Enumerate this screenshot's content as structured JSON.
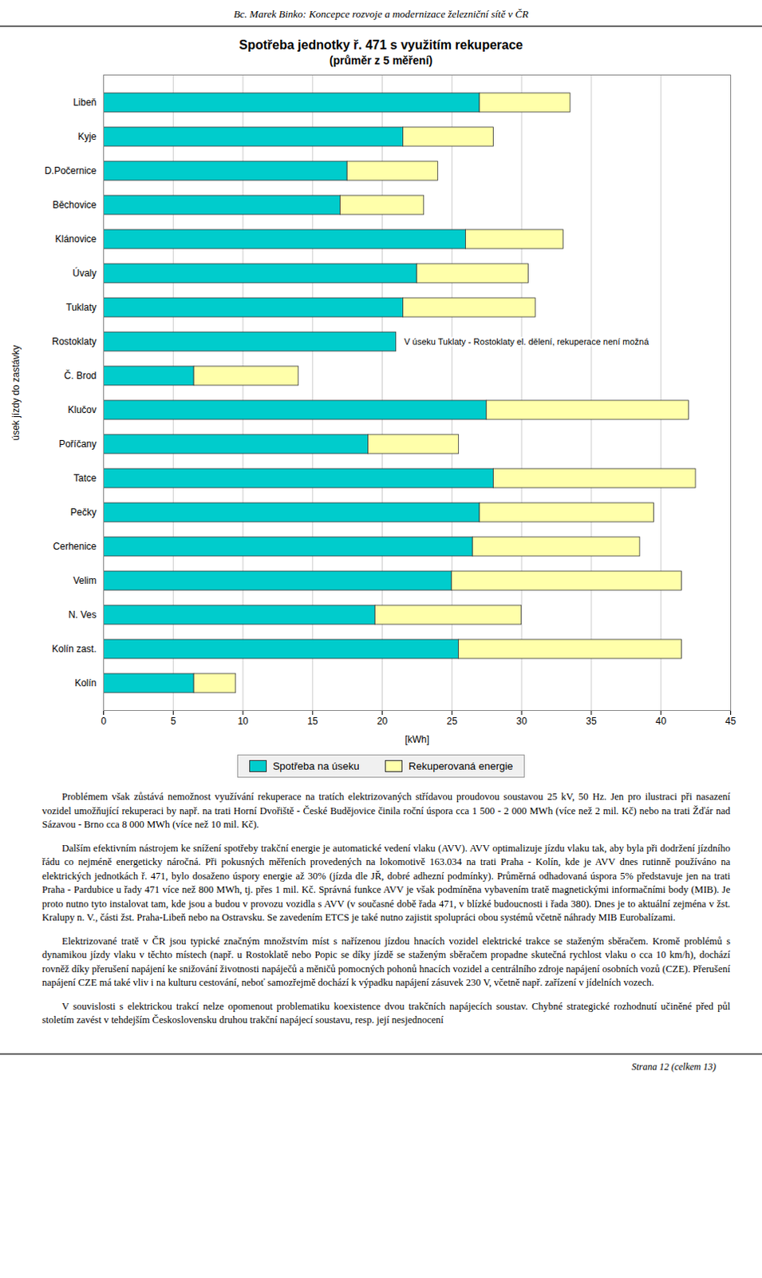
{
  "header": "Bc. Marek Binko: Koncepce rozvoje a modernizace železniční sítě v ČR",
  "chart_data": {
    "type": "bar",
    "orientation": "horizontal",
    "stacked": true,
    "title": "Spotřeba jednotky ř. 471 s využitím rekuperace",
    "subtitle": "(průměr z 5 měření)",
    "xlabel": "[kWh]",
    "ylabel": "úsek jízdy do zastávky",
    "categories": [
      "Libeň",
      "Kyje",
      "D.Počernice",
      "Běchovice",
      "Klánovice",
      "Úvaly",
      "Tuklaty",
      "Rostoklaty",
      "Č. Brod",
      "Klučov",
      "Poříčany",
      "Tatce",
      "Pečky",
      "Cerhenice",
      "Velim",
      "N. Ves",
      "Kolín zast.",
      "Kolín"
    ],
    "series": [
      {
        "name": "Spotřeba na úseku",
        "color": "#00CCCC",
        "values": [
          27.0,
          21.5,
          17.5,
          17.0,
          26.0,
          22.5,
          21.5,
          21.0,
          6.5,
          27.5,
          19.0,
          28.0,
          27.0,
          26.5,
          25.0,
          19.5,
          25.5,
          6.5
        ]
      },
      {
        "name": "Rekuperovaná energie",
        "color": "#FFFFAA",
        "values": [
          6.5,
          6.5,
          6.5,
          6.0,
          7.0,
          8.0,
          9.5,
          0.0,
          7.5,
          14.5,
          6.5,
          14.5,
          12.5,
          12.0,
          16.5,
          10.5,
          16.0,
          3.0
        ]
      }
    ],
    "xlim": [
      0,
      45
    ],
    "xticks": [
      0,
      5,
      10,
      15,
      20,
      25,
      30,
      35,
      40,
      45
    ],
    "grid": true,
    "legend": "bottom",
    "annotations": [
      {
        "text": "V úseku Tuklaty - Rostoklaty el. dělení, rekuperace není možná",
        "category": "Rostoklaty"
      }
    ]
  },
  "paragraphs": [
    "Problémem však zůstává nemožnost využívání rekuperace na tratích elektrizovaných střídavou proudovou soustavou 25 kV, 50 Hz. Jen pro ilustraci při nasazení vozidel umožňující rekuperaci by např. na trati Horní Dvořiště - České Budějovice činila roční úspora cca 1 500 - 2 000 MWh (více než 2 mil. Kč) nebo na trati Žďár nad Sázavou - Brno cca 8 000 MWh (více než 10 mil. Kč).",
    "Dalším efektivním nástrojem ke snížení spotřeby trakční energie je automatické vedení vlaku (AVV). AVV optimalizuje jízdu vlaku tak, aby byla při dodržení jízdního řádu co nejméně energeticky náročná. Při pokusných měřeních provedených na lokomotivě 163.034 na trati Praha - Kolín, kde je AVV dnes rutinně používáno na elektrických jednotkách ř. 471, bylo dosaženo úspory energie až 30% (jízda dle JŘ, dobré adhezní podmínky). Průměrná odhadovaná úspora 5% představuje jen na trati Praha - Pardubice u řady 471 více než 800 MWh, tj. přes 1 mil. Kč. Správná funkce AVV je však podmíněna vybavením tratě magnetickými informačními body (MIB). Je proto nutno tyto instalovat tam, kde jsou a budou v provozu vozidla s AVV (v současné době řada 471, v blízké budoucnosti i řada 380). Dnes je to aktuální zejména v žst. Kralupy n. V., části žst. Praha-Libeň nebo na Ostravsku. Se zavedením ETCS je také nutno zajistit spolupráci obou systémů včetně náhrady MIB Eurobalízami.",
    "Elektrizované tratě v ČR jsou typické značným množstvím míst s nařízenou jízdou hnacích vozidel elektrické trakce se staženým sběračem. Kromě problémů s dynamikou jízdy vlaku v těchto místech (např. u Rostoklatě nebo Popic se díky jízdě se staženým sběračem propadne skutečná rychlost vlaku o cca 10 km/h), dochází rovněž díky přerušení napájení ke snižování životnosti napáječů a měničů pomocných pohonů hnacích vozidel a centrálního zdroje napájení osobních vozů (CZE). Přerušení napájení CZE má také vliv i na kulturu cestování, neboť samozřejmě dochází k výpadku napájení zásuvek 230 V, včetně např. zařízení v jídelních vozech.",
    "V souvislosti s elektrickou trakcí nelze opomenout problematiku koexistence dvou trakčních napájecích soustav. Chybné strategické rozhodnutí učiněné před půl stoletím zavést v tehdejším Československu druhou trakční napájecí soustavu, resp. její nesjednocení"
  ],
  "footer": "Strana 12 (celkem 13)"
}
